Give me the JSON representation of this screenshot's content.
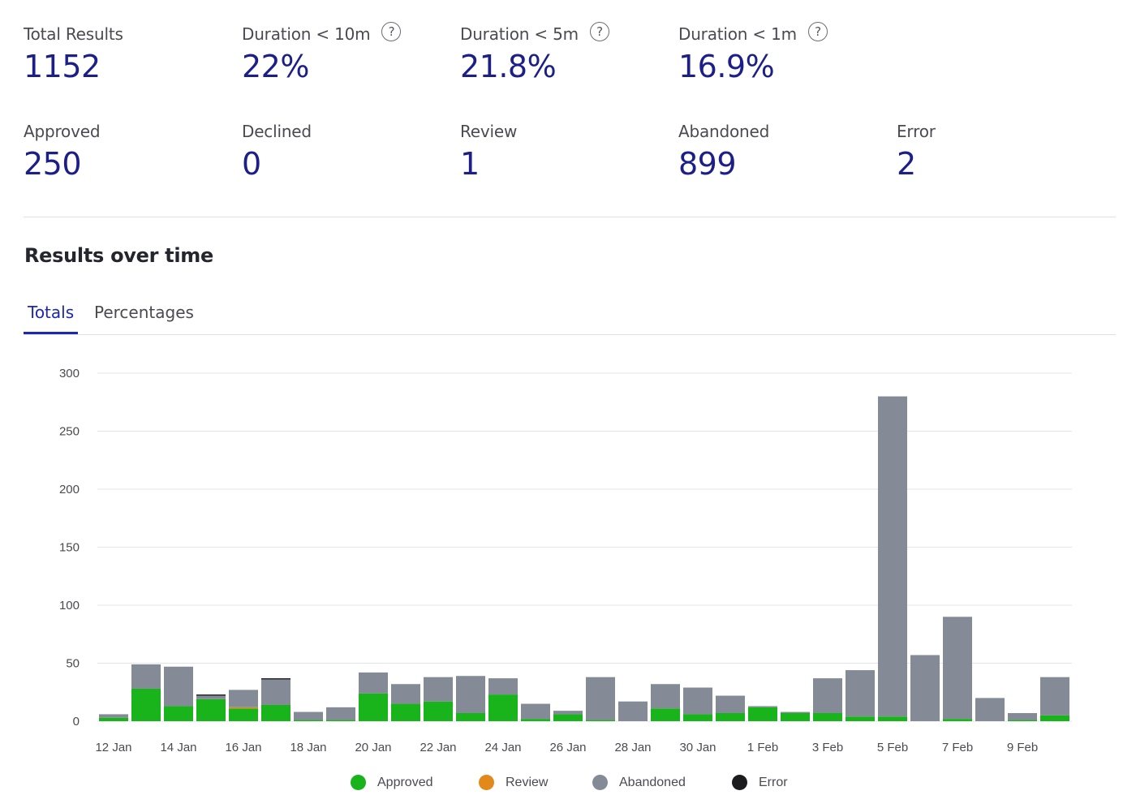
{
  "stats_row1": [
    {
      "label": "Total Results",
      "value": "1152",
      "help": false
    },
    {
      "label": "Duration < 10m",
      "value": "22%",
      "help": true
    },
    {
      "label": "Duration < 5m",
      "value": "21.8%",
      "help": true
    },
    {
      "label": "Duration < 1m",
      "value": "16.9%",
      "help": true
    }
  ],
  "stats_row2": [
    {
      "label": "Approved",
      "value": "250"
    },
    {
      "label": "Declined",
      "value": "0"
    },
    {
      "label": "Review",
      "value": "1"
    },
    {
      "label": "Abandoned",
      "value": "899"
    },
    {
      "label": "Error",
      "value": "2"
    }
  ],
  "help_icon": "?",
  "section_title": "Results over time",
  "tabs": [
    {
      "label": "Totals",
      "active": true
    },
    {
      "label": "Percentages",
      "active": false
    }
  ],
  "colors": {
    "approved": "#19b31c",
    "review": "#e3891c",
    "abandoned": "#858b96",
    "error": "#1c1c1f",
    "value_text": "#1c1f8a",
    "tab_active": "#1c27b8"
  },
  "chart_data": {
    "type": "bar",
    "stacked": true,
    "ylim": [
      0,
      300
    ],
    "yticks": [
      0,
      50,
      100,
      150,
      200,
      250,
      300
    ],
    "grid": true,
    "legend_position": "bottom",
    "categories": [
      "12 Jan",
      "13 Jan",
      "14 Jan",
      "15 Jan",
      "16 Jan",
      "17 Jan",
      "18 Jan",
      "19 Jan",
      "20 Jan",
      "21 Jan",
      "22 Jan",
      "23 Jan",
      "24 Jan",
      "25 Jan",
      "26 Jan",
      "27 Jan",
      "28 Jan",
      "29 Jan",
      "30 Jan",
      "31 Jan",
      "1 Feb",
      "2 Feb",
      "3 Feb",
      "4 Feb",
      "5 Feb",
      "6 Feb",
      "7 Feb",
      "8 Feb",
      "9 Feb",
      "10 Feb"
    ],
    "x_tick_labels": [
      "12 Jan",
      "14 Jan",
      "16 Jan",
      "18 Jan",
      "20 Jan",
      "22 Jan",
      "24 Jan",
      "26 Jan",
      "28 Jan",
      "30 Jan",
      "1 Feb",
      "3 Feb",
      "5 Feb",
      "7 Feb",
      "9 Feb"
    ],
    "series": [
      {
        "name": "Approved",
        "color": "#19b31c",
        "values": [
          3,
          28,
          13,
          19,
          11,
          14,
          1,
          1,
          24,
          15,
          17,
          7,
          23,
          2,
          6,
          1,
          0,
          11,
          6,
          7,
          12,
          7,
          7,
          4,
          4,
          0,
          2,
          0,
          1,
          5
        ]
      },
      {
        "name": "Review",
        "color": "#e3891c",
        "values": [
          0,
          0,
          0,
          0,
          1,
          0,
          0,
          0,
          0,
          0,
          0,
          0,
          0,
          0,
          0,
          0,
          0,
          0,
          0,
          0,
          0,
          0,
          0,
          0,
          0,
          0,
          0,
          0,
          0,
          0
        ]
      },
      {
        "name": "Abandoned",
        "color": "#858b96",
        "values": [
          3,
          21,
          34,
          3,
          15,
          22,
          7,
          11,
          18,
          17,
          21,
          32,
          14,
          13,
          3,
          37,
          17,
          21,
          23,
          15,
          1,
          1,
          30,
          40,
          276,
          57,
          88,
          20,
          6,
          33
        ]
      },
      {
        "name": "Error",
        "color": "#1c1c1f",
        "values": [
          0,
          0,
          0,
          1,
          0,
          1,
          0,
          0,
          0,
          0,
          0,
          0,
          0,
          0,
          0,
          0,
          0,
          0,
          0,
          0,
          0,
          0,
          0,
          0,
          0,
          0,
          0,
          0,
          0,
          0
        ]
      }
    ]
  }
}
